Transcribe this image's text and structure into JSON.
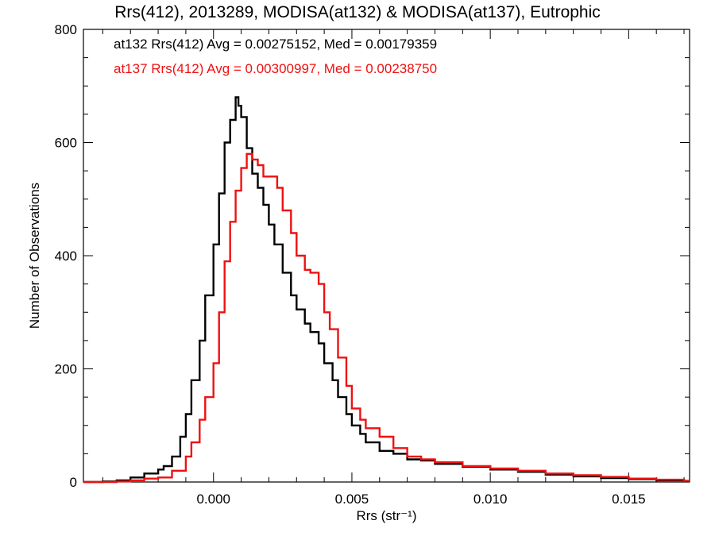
{
  "chart_data": {
    "type": "line",
    "title": "Rrs(412), 2013289, MODISA(at132) & MODISA(at137), Eutrophic",
    "xlabel": "Rrs (str⁻¹)",
    "ylabel": "Number of Observations",
    "xlim": [
      -0.0047,
      0.0172
    ],
    "ylim": [
      0,
      800
    ],
    "xticks": [
      0.0,
      0.005,
      0.01,
      0.015
    ],
    "xtick_labels": [
      "0.000",
      "0.005",
      "0.010",
      "0.015"
    ],
    "yticks": [
      0,
      200,
      400,
      600,
      800
    ],
    "ytick_labels": [
      "0",
      "200",
      "400",
      "600",
      "800"
    ],
    "grid": false,
    "legend_position": "top-left",
    "annotations": [
      {
        "text": "at132 Rrs(412) Avg = 0.00275152, Med = 0.00179359",
        "color": "#000000"
      },
      {
        "text": "at137 Rrs(412) Avg = 0.00300997, Med = 0.00238750",
        "color": "#ee1111"
      }
    ],
    "series": [
      {
        "color": "#000000",
        "step": true,
        "x": [
          -0.0047,
          -0.004,
          -0.0035,
          -0.003,
          -0.0025,
          -0.002,
          -0.0018,
          -0.0015,
          -0.0012,
          -0.001,
          -0.0008,
          -0.0005,
          -0.0003,
          0.0,
          0.0002,
          0.0004,
          0.0006,
          0.0008,
          0.0009,
          0.001,
          0.0012,
          0.0014,
          0.0016,
          0.0018,
          0.002,
          0.0022,
          0.0025,
          0.0028,
          0.003,
          0.0033,
          0.0035,
          0.0038,
          0.004,
          0.0043,
          0.0045,
          0.0048,
          0.005,
          0.0053,
          0.0055,
          0.006,
          0.0065,
          0.007,
          0.0075,
          0.008,
          0.009,
          0.01,
          0.011,
          0.012,
          0.013,
          0.014,
          0.015,
          0.016,
          0.017
        ],
        "y": [
          0,
          1,
          3,
          8,
          15,
          22,
          28,
          45,
          80,
          120,
          180,
          250,
          330,
          420,
          510,
          600,
          640,
          680,
          665,
          645,
          590,
          545,
          520,
          490,
          455,
          420,
          370,
          330,
          305,
          280,
          265,
          245,
          210,
          180,
          150,
          120,
          100,
          85,
          70,
          55,
          50,
          40,
          38,
          32,
          27,
          22,
          18,
          13,
          10,
          7,
          5,
          3,
          2
        ]
      },
      {
        "color": "#ee1111",
        "step": true,
        "x": [
          -0.0047,
          -0.004,
          -0.0035,
          -0.003,
          -0.0025,
          -0.002,
          -0.0015,
          -0.001,
          -0.0008,
          -0.0005,
          -0.0003,
          0.0,
          0.0002,
          0.0004,
          0.0006,
          0.0008,
          0.001,
          0.0012,
          0.0014,
          0.0016,
          0.0018,
          0.002,
          0.0023,
          0.0025,
          0.0028,
          0.003,
          0.0033,
          0.0035,
          0.0038,
          0.004,
          0.0042,
          0.0045,
          0.0048,
          0.005,
          0.0053,
          0.0055,
          0.006,
          0.0065,
          0.007,
          0.0075,
          0.008,
          0.009,
          0.01,
          0.011,
          0.012,
          0.013,
          0.014,
          0.015,
          0.016,
          0.017
        ],
        "y": [
          0,
          0,
          1,
          3,
          6,
          8,
          20,
          45,
          70,
          110,
          150,
          210,
          300,
          390,
          460,
          515,
          555,
          580,
          570,
          560,
          540,
          540,
          520,
          480,
          440,
          400,
          375,
          370,
          350,
          300,
          270,
          220,
          170,
          130,
          110,
          95,
          80,
          60,
          45,
          40,
          35,
          28,
          24,
          20,
          15,
          12,
          9,
          6,
          4,
          2
        ]
      }
    ]
  }
}
